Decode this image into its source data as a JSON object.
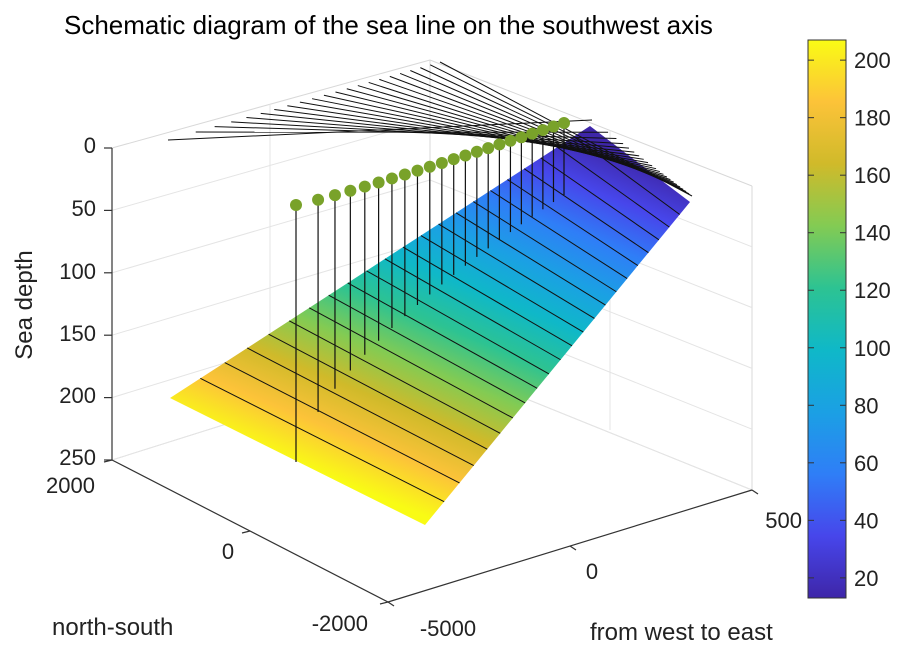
{
  "chart_data": {
    "type": "surface3d",
    "title": "Schematic diagram of the sea line on the southwest axis",
    "zlabel": "Sea depth",
    "xlabel": "from west to east",
    "ylabel": "north-south",
    "zticks": [
      "0",
      "50",
      "100",
      "150",
      "200",
      "250"
    ],
    "yticks": [
      "2000",
      "0",
      "-2000"
    ],
    "xticks": [
      "-5000",
      "0",
      "500"
    ],
    "zlim": [
      0,
      250
    ],
    "zdir": "reverse",
    "colorbar": {
      "ticks": [
        "200",
        "180",
        "160",
        "140",
        "120",
        "100",
        "80",
        "60",
        "40",
        "20"
      ],
      "range": [
        13,
        207
      ],
      "colormap": [
        "#3e26a8",
        "#4746eb",
        "#2f7ef7",
        "#1ba0e4",
        "#0fb8c8",
        "#2dc392",
        "#83cb53",
        "#d0ba2a",
        "#fcc339",
        "#f9fb15"
      ]
    },
    "series": [
      {
        "kind": "points",
        "color": "#79a22a",
        "depth": [
          45,
          43,
          41,
          39,
          37,
          35,
          33,
          31,
          29,
          27,
          25,
          23,
          21,
          19,
          17,
          15,
          13,
          11,
          9,
          7,
          5,
          3
        ]
      }
    ],
    "surface_depth_range": [
      13,
      207
    ],
    "contour_lines": 22,
    "grid": true
  }
}
